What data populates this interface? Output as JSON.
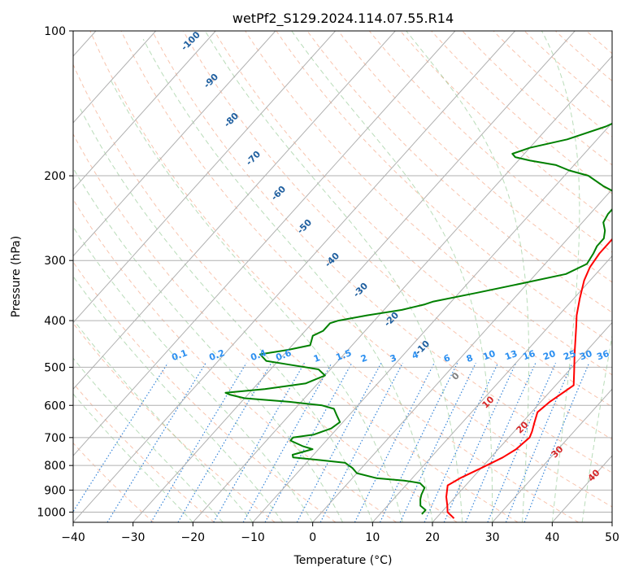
{
  "chart_data": {
    "type": "line",
    "title": "wetPf2_S129.2024.114.07.55.R14",
    "xlabel": "Temperature (°C)",
    "ylabel": "Pressure (hPa)",
    "xlim": [
      -40,
      50
    ],
    "ylim": [
      1050,
      100
    ],
    "y_scale": "log",
    "x_ticks": [
      -40,
      -30,
      -20,
      -10,
      0,
      10,
      20,
      30,
      40,
      50
    ],
    "y_ticks": [
      1000,
      900,
      800,
      700,
      600,
      500,
      400,
      300,
      200,
      100
    ],
    "grid": true,
    "series": [
      {
        "color": "#ff0000",
        "points": [
          [
            23.0,
            1030
          ],
          [
            21.0,
            1000
          ],
          [
            20.0,
            970
          ],
          [
            18.5,
            930
          ],
          [
            17.0,
            880
          ],
          [
            18.0,
            850
          ],
          [
            20.0,
            810
          ],
          [
            22.0,
            770
          ],
          [
            23.0,
            740
          ],
          [
            23.5,
            700
          ],
          [
            23.0,
            680
          ],
          [
            22.0,
            650
          ],
          [
            21.0,
            620
          ],
          [
            21.5,
            590
          ],
          [
            22.5,
            560
          ],
          [
            23.0,
            545
          ],
          [
            21.0,
            510
          ],
          [
            18.5,
            470
          ],
          [
            14.5,
            410
          ],
          [
            13.0,
            390
          ],
          [
            11.0,
            360
          ],
          [
            9.0,
            330
          ],
          [
            8.0,
            310
          ],
          [
            7.5,
            290
          ],
          [
            7.5,
            260
          ],
          [
            5.5,
            235
          ],
          [
            4.0,
            225
          ],
          [
            4.5,
            215
          ],
          [
            6.0,
            200
          ],
          [
            7.5,
            190
          ],
          [
            7.5,
            170
          ],
          [
            7.5,
            160
          ],
          [
            7.0,
            150
          ],
          [
            6.0,
            145
          ],
          [
            5.5,
            140
          ],
          [
            6.0,
            130
          ],
          [
            7.0,
            120
          ],
          [
            8.5,
            110
          ],
          [
            9.5,
            100
          ]
        ]
      },
      {
        "color": "#008000",
        "points": [
          [
            17.0,
            1010
          ],
          [
            17.0,
            990
          ],
          [
            15.5,
            970
          ],
          [
            14.5,
            940
          ],
          [
            14.0,
            920
          ],
          [
            13.5,
            890
          ],
          [
            12.0,
            870
          ],
          [
            9.0,
            860
          ],
          [
            4.0,
            850
          ],
          [
            0.0,
            830
          ],
          [
            -1.5,
            810
          ],
          [
            -3.5,
            790
          ],
          [
            -8.0,
            780
          ],
          [
            -13.0,
            770
          ],
          [
            -13.5,
            760
          ],
          [
            -11.0,
            740
          ],
          [
            -13.0,
            730
          ],
          [
            -16.0,
            710
          ],
          [
            -16.0,
            700
          ],
          [
            -13.0,
            690
          ],
          [
            -11.0,
            670
          ],
          [
            -10.5,
            650
          ],
          [
            -12.0,
            630
          ],
          [
            -13.5,
            610
          ],
          [
            -16.0,
            600
          ],
          [
            -22.0,
            590
          ],
          [
            -30.0,
            580
          ],
          [
            -33.0,
            570
          ],
          [
            -34.0,
            565
          ],
          [
            -28.0,
            555
          ],
          [
            -22.0,
            540
          ],
          [
            -20.0,
            520
          ],
          [
            -22.0,
            505
          ],
          [
            -27.0,
            495
          ],
          [
            -32.0,
            485
          ],
          [
            -34.0,
            470
          ],
          [
            -30.0,
            460
          ],
          [
            -27.0,
            450
          ],
          [
            -28.0,
            430
          ],
          [
            -27.0,
            420
          ],
          [
            -27.0,
            405
          ],
          [
            -26.0,
            400
          ],
          [
            -22.0,
            390
          ],
          [
            -17.0,
            380
          ],
          [
            -14.0,
            370
          ],
          [
            -13.0,
            365
          ],
          [
            -7.0,
            350
          ],
          [
            -1.0,
            335
          ],
          [
            5.0,
            320
          ],
          [
            7.0,
            305
          ],
          [
            6.5,
            290
          ],
          [
            6.0,
            280
          ],
          [
            6.0,
            270
          ],
          [
            5.0,
            260
          ],
          [
            3.5,
            250
          ],
          [
            3.0,
            240
          ],
          [
            3.0,
            230
          ],
          [
            2.5,
            220
          ],
          [
            -2.0,
            210
          ],
          [
            -6.0,
            200
          ],
          [
            -10.0,
            195
          ],
          [
            -13.0,
            190
          ],
          [
            -18.0,
            186
          ],
          [
            -21.0,
            183
          ],
          [
            -22.0,
            180
          ],
          [
            -20.0,
            175
          ],
          [
            -15.0,
            168
          ],
          [
            -10.5,
            158
          ],
          [
            -7.5,
            148
          ],
          [
            -5.5,
            138
          ],
          [
            -5.0,
            128
          ],
          [
            -3.5,
            118
          ],
          [
            -1.0,
            110
          ],
          [
            0.5,
            105
          ],
          [
            1.0,
            100
          ]
        ]
      }
    ],
    "isotherm_lines": {
      "color": "#b0b0b0",
      "spacing": 10
    },
    "dry_adiabat_labels": [
      "-100",
      "-90",
      "-80",
      "-70",
      "-60",
      "-50",
      "-40",
      "-30",
      "-20",
      "-10",
      "0",
      "10",
      "20",
      "30",
      "40"
    ],
    "mixing_ratio_labels": [
      "0.1",
      "0.2",
      "0.4",
      "0.6",
      "1",
      "1.5",
      "2",
      "3",
      "4",
      "6",
      "8",
      "10",
      "13",
      "16",
      "20",
      "25",
      "30",
      "36"
    ]
  }
}
